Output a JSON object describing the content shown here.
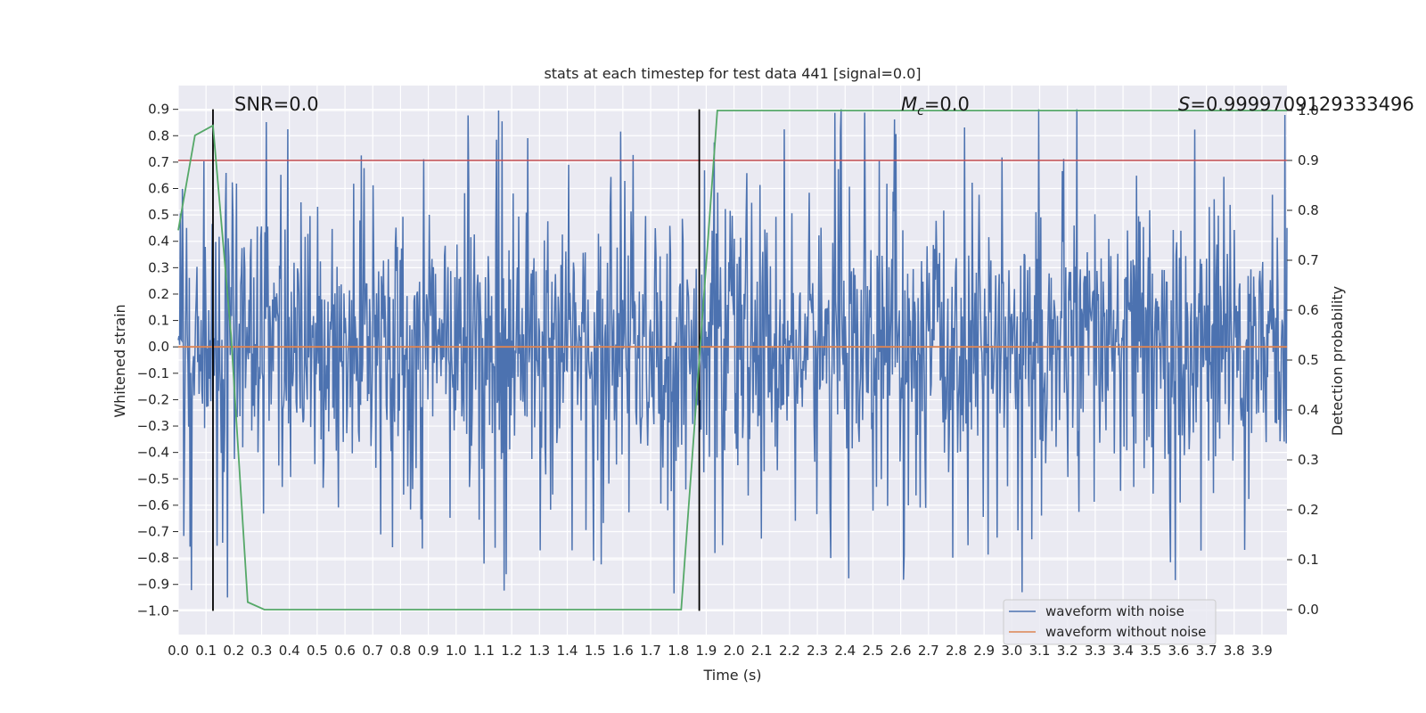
{
  "chart_data": {
    "type": "line",
    "title": "stats at each timestep for test data 441 [signal=0.0]",
    "xlabel": "Time (s)",
    "ylabel": "Whitened strain",
    "y2label": "Detection probability",
    "xlim": [
      0.0,
      3.99
    ],
    "ylim": [
      -1.09,
      0.99
    ],
    "y2lim": [
      -0.05,
      1.05
    ],
    "x_ticks": [
      "0.0",
      "0.1",
      "0.2",
      "0.3",
      "0.4",
      "0.5",
      "0.6",
      "0.7",
      "0.8",
      "0.9",
      "1.0",
      "1.1",
      "1.2",
      "1.3",
      "1.4",
      "1.5",
      "1.6",
      "1.7",
      "1.8",
      "1.9",
      "2.0",
      "2.1",
      "2.2",
      "2.3",
      "2.4",
      "2.5",
      "2.6",
      "2.7",
      "2.8",
      "2.9",
      "3.0",
      "3.1",
      "3.2",
      "3.3",
      "3.4",
      "3.5",
      "3.6",
      "3.7",
      "3.8",
      "3.9"
    ],
    "y_ticks": [
      "0.9",
      "0.8",
      "0.7",
      "0.6",
      "0.5",
      "0.4",
      "0.3",
      "0.2",
      "0.1",
      "0.0",
      "−0.1",
      "−0.2",
      "−0.3",
      "−0.4",
      "−0.5",
      "−0.6",
      "−0.7",
      "−0.8",
      "−0.9",
      "−1.0"
    ],
    "y2_ticks": [
      "1.0",
      "0.9",
      "0.8",
      "0.7",
      "0.6",
      "0.5",
      "0.4",
      "0.3",
      "0.2",
      "0.1",
      "0.0"
    ],
    "grid": true,
    "legend_position": "lower-right",
    "annotations": {
      "snr": "SNR=0.0",
      "mc_symbol": "M",
      "mc_sub": "c",
      "mc_value": "=0.0",
      "s_symbol": "S",
      "s_value": "=0.9999709129333496"
    },
    "series": [
      {
        "name": "waveform with noise",
        "color": "#4c72b0",
        "description": "noisy whitened strain, amplitude mostly within ±0.5 with spikes up to ±1.0"
      },
      {
        "name": "waveform without noise",
        "color": "#dd8452",
        "values_constant": 0.0
      }
    ],
    "detection_probability": {
      "color": "#55a868",
      "x": [
        0.0,
        0.06,
        0.125,
        0.19,
        0.25,
        0.31,
        1.81,
        1.875,
        1.94,
        3.99
      ],
      "y": [
        0.76,
        0.95,
        0.97,
        0.55,
        0.015,
        0.0,
        0.0,
        0.5,
        1.0,
        1.0
      ]
    },
    "threshold": {
      "value_y2": 0.9,
      "color": "#c44e52"
    },
    "vlines": {
      "x": [
        0.125,
        1.875
      ],
      "color": "#000000"
    }
  }
}
